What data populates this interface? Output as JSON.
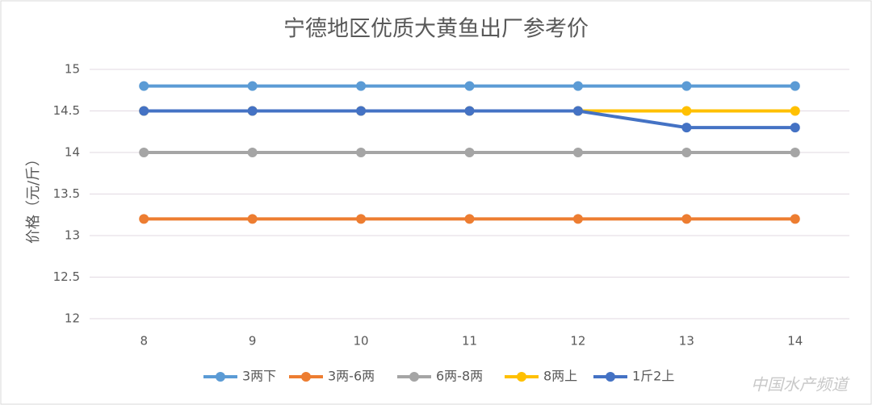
{
  "chart_data": {
    "type": "line",
    "title": "宁德地区优质大黄鱼出厂参考价",
    "y_label": "价格（元/斤）",
    "categories": [
      "8",
      "9",
      "10",
      "11",
      "12",
      "13",
      "14"
    ],
    "series": [
      {
        "name": "3两下",
        "color": "#5b9bd5",
        "values": [
          14.8,
          14.8,
          14.8,
          14.8,
          14.8,
          14.8,
          14.8
        ]
      },
      {
        "name": "3两-6两",
        "color": "#ed7d31",
        "values": [
          13.2,
          13.2,
          13.2,
          13.2,
          13.2,
          13.2,
          13.2
        ]
      },
      {
        "name": "6两-8两",
        "color": "#a5a5a5",
        "values": [
          14,
          14,
          14,
          14,
          14,
          14,
          14
        ]
      },
      {
        "name": "8两上",
        "color": "#ffc000",
        "values": [
          14.5,
          14.5,
          14.5,
          14.5,
          14.5,
          14.5,
          14.5
        ]
      },
      {
        "name": "1斤2上",
        "color": "#4472c4",
        "values": [
          14.5,
          14.5,
          14.5,
          14.5,
          14.5,
          14.3,
          14.3
        ]
      }
    ],
    "ylim": [
      12,
      15
    ],
    "yticks": [
      12,
      12.5,
      13,
      13.5,
      14,
      14.5,
      15
    ],
    "grid": true,
    "legend": "bottom",
    "watermark": "中国水产频道"
  }
}
